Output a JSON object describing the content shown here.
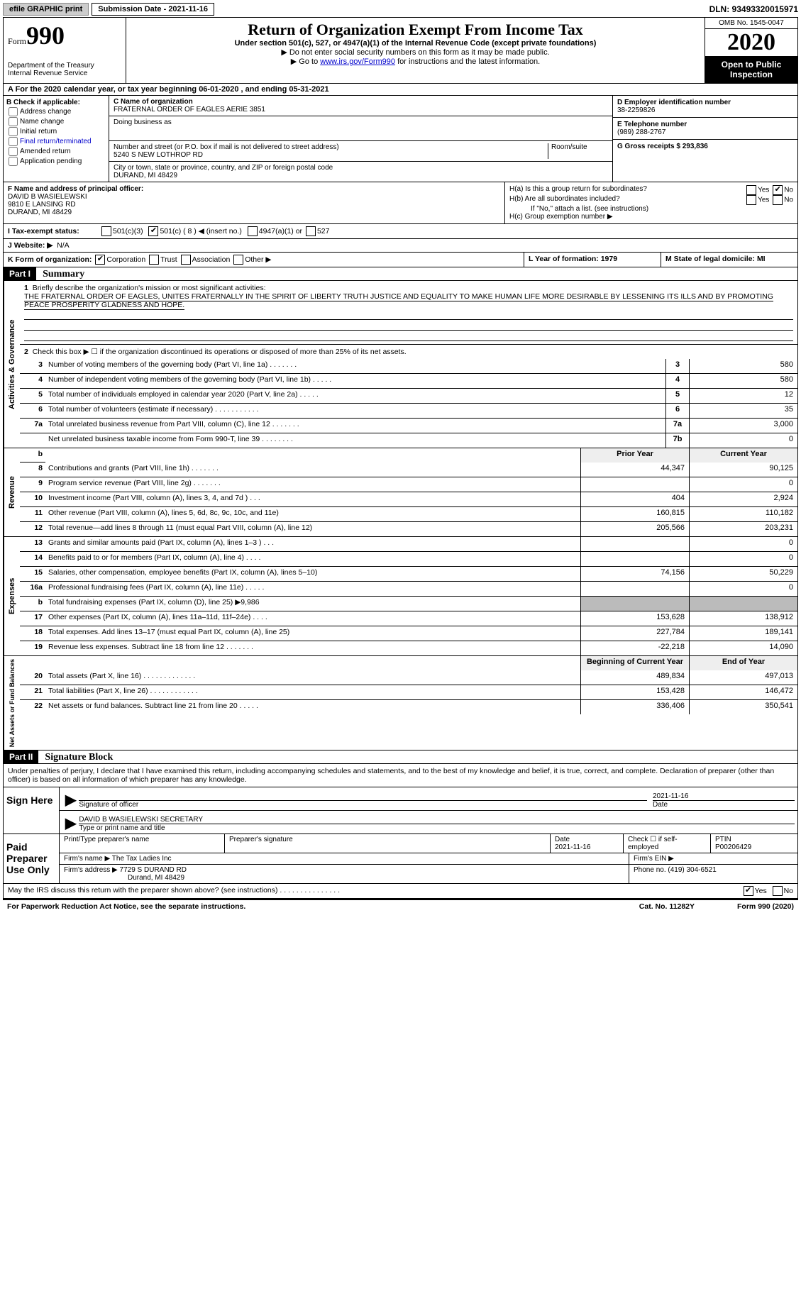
{
  "topbar": {
    "efile_btn": "efile GRAPHIC print",
    "submission_label": "Submission Date - 2021-11-16",
    "dln": "DLN: 93493320015971"
  },
  "header": {
    "form_word": "Form",
    "form_num": "990",
    "dept": "Department of the Treasury\nInternal Revenue Service",
    "title": "Return of Organization Exempt From Income Tax",
    "sub1": "Under section 501(c), 527, or 4947(a)(1) of the Internal Revenue Code (except private foundations)",
    "sub2": "▶ Do not enter social security numbers on this form as it may be made public.",
    "sub3_pre": "▶ Go to ",
    "sub3_link": "www.irs.gov/Form990",
    "sub3_post": " for instructions and the latest information.",
    "omb": "OMB No. 1545-0047",
    "year": "2020",
    "open_pub": "Open to Public Inspection"
  },
  "row_a": "A For the 2020 calendar year, or tax year beginning 06-01-2020   , and ending 05-31-2021",
  "section_b": {
    "label": "B Check if applicable:",
    "opts": [
      "Address change",
      "Name change",
      "Initial return",
      "Final return/terminated",
      "Amended return",
      "Application pending"
    ]
  },
  "section_c": {
    "name_label": "C Name of organization",
    "name": "FRATERNAL ORDER OF EAGLES AERIE 3851",
    "dba_label": "Doing business as",
    "dba": "",
    "addr_label": "Number and street (or P.O. box if mail is not delivered to street address)",
    "room_label": "Room/suite",
    "addr": "5240 S NEW LOTHROP RD",
    "city_label": "City or town, state or province, country, and ZIP or foreign postal code",
    "city": "DURAND, MI  48429"
  },
  "section_d": {
    "label": "D Employer identification number",
    "val": "38-2259826"
  },
  "section_e": {
    "label": "E Telephone number",
    "val": "(989) 288-2767"
  },
  "section_g": {
    "label": "G Gross receipts $ 293,836"
  },
  "section_f": {
    "label": "F Name and address of principal officer:",
    "name": "DAVID B WASIELEWSKI",
    "addr1": "9810 E LANSING RD",
    "addr2": "DURAND, MI  48429"
  },
  "section_h": {
    "ha_label": "H(a)  Is this a group return for subordinates?",
    "hb_label": "H(b)  Are all subordinates included?",
    "hb_note": "If \"No,\" attach a list. (see instructions)",
    "hc_label": "H(c)  Group exemption number ▶",
    "yes": "Yes",
    "no": "No"
  },
  "row_i": {
    "label": "I   Tax-exempt status:",
    "opt1": "501(c)(3)",
    "opt2": "501(c) ( 8 ) ◀ (insert no.)",
    "opt3": "4947(a)(1) or",
    "opt4": "527"
  },
  "row_j": {
    "label": "J   Website: ▶",
    "val": "N/A"
  },
  "row_k": {
    "label": "K Form of organization:",
    "opt1": "Corporation",
    "opt2": "Trust",
    "opt3": "Association",
    "opt4": "Other ▶"
  },
  "row_l": "L Year of formation: 1979",
  "row_m": "M State of legal domicile: MI",
  "part1": {
    "num": "Part I",
    "title": "Summary"
  },
  "summary": {
    "governance_label": "Activities & Governance",
    "revenue_label": "Revenue",
    "expenses_label": "Expenses",
    "netassets_label": "Net Assets or Fund Balances",
    "line1_label": "Briefly describe the organization's mission or most significant activities:",
    "line1_text": "THE FRATERNAL ORDER OF EAGLES, UNITES FRATERNALLY IN THE SPIRIT OF LIBERTY TRUTH JUSTICE AND EQUALITY TO MAKE HUMAN LIFE MORE DESIRABLE BY LESSENING ITS ILLS AND BY PROMOTING PEACE PROSPERITY GLADNESS AND HOPE.",
    "line2": "Check this box ▶ ☐  if the organization discontinued its operations or disposed of more than 25% of its net assets.",
    "rows_gov": [
      {
        "n": "3",
        "d": "Number of voting members of the governing body (Part VI, line 1a)   .    .    .    .    .    .    .",
        "b": "3",
        "v": "580"
      },
      {
        "n": "4",
        "d": "Number of independent voting members of the governing body (Part VI, line 1b)   .    .    .    .    .",
        "b": "4",
        "v": "580"
      },
      {
        "n": "5",
        "d": "Total number of individuals employed in calendar year 2020 (Part V, line 2a)   .    .    .    .    .",
        "b": "5",
        "v": "12"
      },
      {
        "n": "6",
        "d": "Total number of volunteers (estimate if necessary)   .    .    .    .    .    .    .    .    .    .    .",
        "b": "6",
        "v": "35"
      },
      {
        "n": "7a",
        "d": "Total unrelated business revenue from Part VIII, column (C), line 12   .    .    .    .    .    .    .",
        "b": "7a",
        "v": "3,000"
      },
      {
        "n": "",
        "d": "Net unrelated business taxable income from Form 990-T, line 39   .    .    .    .    .    .    .    .",
        "b": "7b",
        "v": "0"
      }
    ],
    "prior_hdr": "Prior Year",
    "current_hdr": "Current Year",
    "rows_rev": [
      {
        "n": "8",
        "d": "Contributions and grants (Part VIII, line 1h)   .    .    .    .    .    .    .",
        "p": "44,347",
        "v": "90,125"
      },
      {
        "n": "9",
        "d": "Program service revenue (Part VIII, line 2g)   .    .    .    .    .    .    .",
        "p": "",
        "v": "0"
      },
      {
        "n": "10",
        "d": "Investment income (Part VIII, column (A), lines 3, 4, and 7d )   .    .    .",
        "p": "404",
        "v": "2,924"
      },
      {
        "n": "11",
        "d": "Other revenue (Part VIII, column (A), lines 5, 6d, 8c, 9c, 10c, and 11e)",
        "p": "160,815",
        "v": "110,182"
      },
      {
        "n": "12",
        "d": "Total revenue—add lines 8 through 11 (must equal Part VIII, column (A), line 12)",
        "p": "205,566",
        "v": "203,231"
      }
    ],
    "rows_exp": [
      {
        "n": "13",
        "d": "Grants and similar amounts paid (Part IX, column (A), lines 1–3 )   .    .    .",
        "p": "",
        "v": "0"
      },
      {
        "n": "14",
        "d": "Benefits paid to or for members (Part IX, column (A), line 4)   .    .    .    .",
        "p": "",
        "v": "0"
      },
      {
        "n": "15",
        "d": "Salaries, other compensation, employee benefits (Part IX, column (A), lines 5–10)",
        "p": "74,156",
        "v": "50,229"
      },
      {
        "n": "16a",
        "d": "Professional fundraising fees (Part IX, column (A), line 11e)   .    .    .    .    .",
        "p": "",
        "v": "0"
      },
      {
        "n": "b",
        "d": "Total fundraising expenses (Part IX, column (D), line 25) ▶9,986",
        "p": "GRAY",
        "v": "GRAY"
      },
      {
        "n": "17",
        "d": "Other expenses (Part IX, column (A), lines 11a–11d, 11f–24e)   .    .    .    .",
        "p": "153,628",
        "v": "138,912"
      },
      {
        "n": "18",
        "d": "Total expenses. Add lines 13–17 (must equal Part IX, column (A), line 25)",
        "p": "227,784",
        "v": "189,141"
      },
      {
        "n": "19",
        "d": "Revenue less expenses. Subtract line 18 from line 12   .    .    .    .    .    .    .",
        "p": "-22,218",
        "v": "14,090"
      }
    ],
    "begin_hdr": "Beginning of Current Year",
    "end_hdr": "End of Year",
    "rows_net": [
      {
        "n": "20",
        "d": "Total assets (Part X, line 16)   .    .    .    .    .    .    .    .    .    .    .    .    .",
        "p": "489,834",
        "v": "497,013"
      },
      {
        "n": "21",
        "d": "Total liabilities (Part X, line 26)   .    .    .    .    .    .    .    .    .    .    .    .",
        "p": "153,428",
        "v": "146,472"
      },
      {
        "n": "22",
        "d": "Net assets or fund balances. Subtract line 21 from line 20   .    .    .    .    .",
        "p": "336,406",
        "v": "350,541"
      }
    ]
  },
  "part2": {
    "num": "Part II",
    "title": "Signature Block"
  },
  "sig": {
    "declaration": "Under penalties of perjury, I declare that I have examined this return, including accompanying schedules and statements, and to the best of my knowledge and belief, it is true, correct, and complete. Declaration of preparer (other than officer) is based on all information of which preparer has any knowledge.",
    "sign_here": "Sign Here",
    "sig_officer_label": "Signature of officer",
    "date_label": "Date",
    "sig_date": "2021-11-16",
    "name_title": "DAVID B WASIELEWSKI  SECRETARY",
    "name_title_label": "Type or print name and title",
    "paid_prep": "Paid Preparer Use Only",
    "prep_name_label": "Print/Type preparer's name",
    "prep_sig_label": "Preparer's signature",
    "prep_date_label": "Date",
    "prep_date": "2021-11-16",
    "self_emp": "Check ☐ if self-employed",
    "ptin_label": "PTIN",
    "ptin": "P00206429",
    "firm_name_label": "Firm's name    ▶",
    "firm_name": "The Tax Ladies Inc",
    "firm_ein_label": "Firm's EIN ▶",
    "firm_addr_label": "Firm's address ▶",
    "firm_addr1": "7729 S DURAND RD",
    "firm_addr2": "Durand, MI  48429",
    "firm_phone_label": "Phone no. (419) 304-6521",
    "discuss": "May the IRS discuss this return with the preparer shown above? (see instructions)   .    .    .    .    .    .    .    .    .    .    .    .    .    .    .",
    "yes": "Yes",
    "no": "No"
  },
  "footer": {
    "pra": "For Paperwork Reduction Act Notice, see the separate instructions.",
    "cat": "Cat. No. 11282Y",
    "form": "Form 990 (2020)"
  }
}
